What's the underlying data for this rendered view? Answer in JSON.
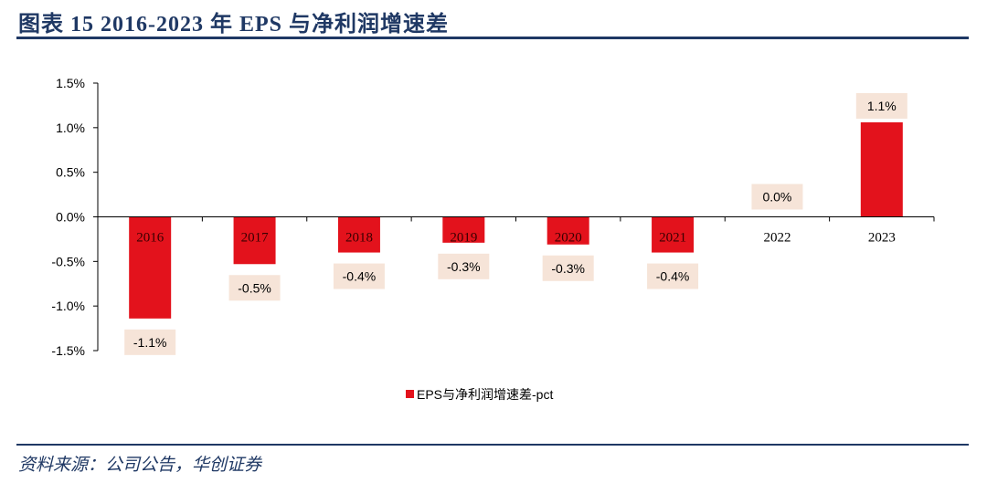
{
  "header": {
    "title": "图表 15   2016-2023 年 EPS 与净利润增速差"
  },
  "footer": {
    "source": "资料来源：公司公告，华创证券"
  },
  "chart_data": {
    "type": "bar",
    "title": "",
    "xlabel": "",
    "ylabel": "",
    "categories": [
      "2016",
      "2017",
      "2018",
      "2019",
      "2020",
      "2021",
      "2022",
      "2023"
    ],
    "series": [
      {
        "name": "EPS与净利润增速差-pct",
        "values": [
          -1.14,
          -0.53,
          -0.4,
          -0.29,
          -0.31,
          -0.4,
          0.0,
          1.06
        ],
        "labels": [
          "-1.1%",
          "-0.5%",
          "-0.4%",
          "-0.3%",
          "-0.3%",
          "-0.4%",
          "0.0%",
          "1.1%"
        ]
      }
    ],
    "ylim": [
      -1.5,
      1.5
    ],
    "yticks": [
      "1.5%",
      "1.0%",
      "0.5%",
      "0.0%",
      "-0.5%",
      "-1.0%",
      "-1.5%"
    ],
    "grid": false,
    "legend": "bottom-center",
    "colors": {
      "bar": "#e3121c",
      "label_bg": "#f6e4d8"
    }
  }
}
